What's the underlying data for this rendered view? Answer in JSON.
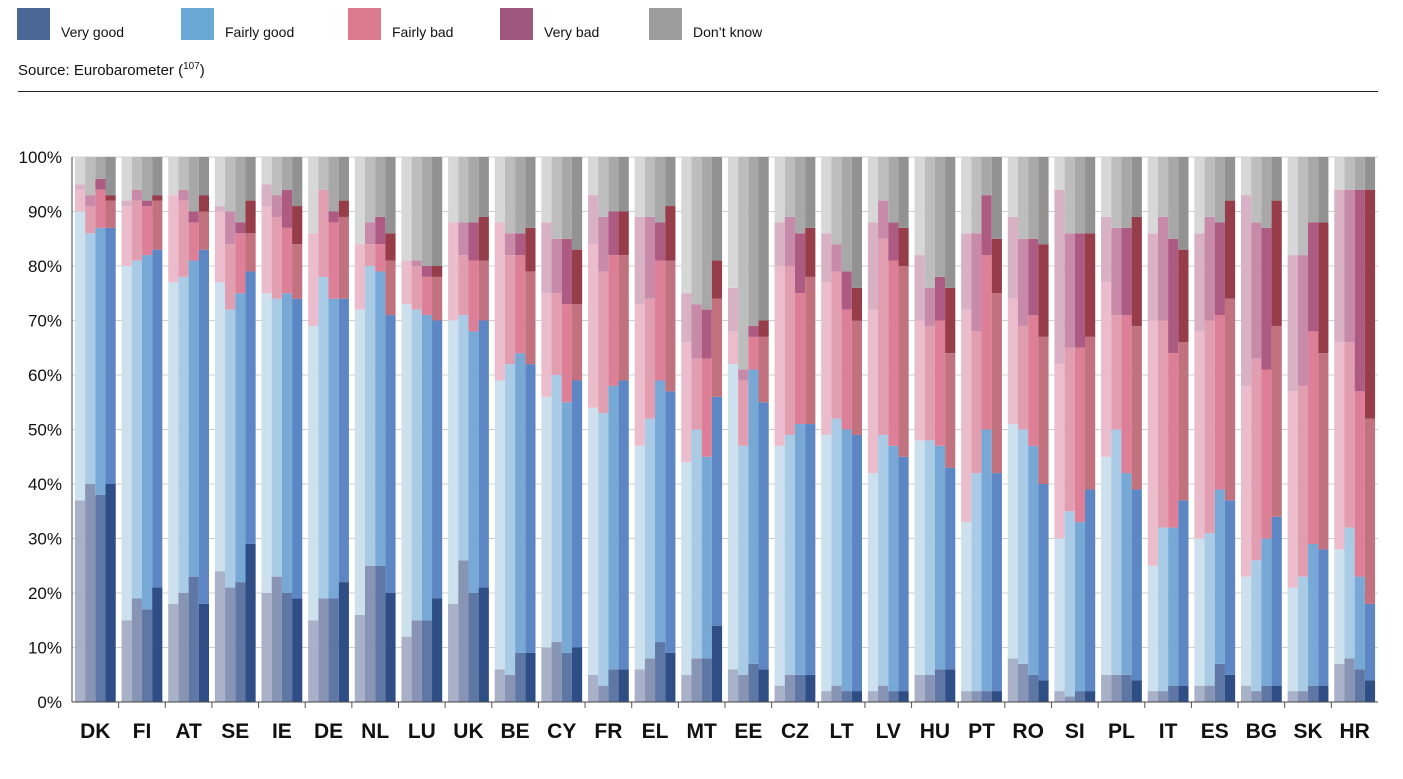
{
  "legend": {
    "items": [
      {
        "label": "Very good",
        "color": "#4a6796"
      },
      {
        "label": "Fairly good",
        "color": "#6aa8d6"
      },
      {
        "label": "Fairly bad",
        "color": "#dc7b90"
      },
      {
        "label": "Very bad",
        "color": "#a0577f"
      },
      {
        "label": "Don’t know",
        "color": "#9c9c9c"
      }
    ]
  },
  "source": {
    "text": "Source: Eurobarometer (",
    "ref": "107",
    "close": ")"
  },
  "chart_data": {
    "type": "bar",
    "stacked": true,
    "ylim": [
      0,
      100
    ],
    "yticks": [
      "0%",
      "10%",
      "20%",
      "30%",
      "40%",
      "50%",
      "60%",
      "70%",
      "80%",
      "90%",
      "100%"
    ],
    "grid": true,
    "categories": [
      "DK",
      "FI",
      "AT",
      "SE",
      "IE",
      "DE",
      "NL",
      "LU",
      "UK",
      "BE",
      "CY",
      "FR",
      "EL",
      "MT",
      "EE",
      "CZ",
      "LT",
      "LV",
      "HU",
      "PT",
      "RO",
      "SI",
      "PL",
      "IT",
      "ES",
      "BG",
      "SK",
      "HR"
    ],
    "stack_order": [
      "Very good",
      "Fairly good",
      "Fairly bad",
      "Very bad",
      "Don’t know"
    ],
    "countries": [
      {
        "name": "DK",
        "bars": [
          [
            37,
            53,
            4,
            1,
            5
          ],
          [
            40,
            46,
            5,
            2,
            7
          ],
          [
            38,
            49,
            7,
            2,
            4
          ],
          [
            40,
            47,
            5,
            1,
            7
          ]
        ]
      },
      {
        "name": "FI",
        "bars": [
          [
            15,
            65,
            11,
            1,
            8
          ],
          [
            19,
            62,
            11,
            2,
            6
          ],
          [
            17,
            65,
            9,
            1,
            8
          ],
          [
            21,
            62,
            9,
            1,
            7
          ]
        ]
      },
      {
        "name": "AT",
        "bars": [
          [
            18,
            59,
            16,
            0,
            7
          ],
          [
            20,
            58,
            14,
            2,
            6
          ],
          [
            23,
            58,
            7,
            2,
            10
          ],
          [
            18,
            65,
            7,
            3,
            7
          ]
        ]
      },
      {
        "name": "SE",
        "bars": [
          [
            24,
            53,
            13,
            1,
            9
          ],
          [
            21,
            51,
            12,
            6,
            10
          ],
          [
            22,
            53,
            11,
            2,
            12
          ],
          [
            29,
            50,
            7,
            6,
            8
          ]
        ]
      },
      {
        "name": "IE",
        "bars": [
          [
            20,
            55,
            16,
            4,
            5
          ],
          [
            23,
            51,
            15,
            4,
            7
          ],
          [
            20,
            55,
            12,
            7,
            6
          ],
          [
            19,
            55,
            10,
            7,
            9
          ]
        ]
      },
      {
        "name": "DE",
        "bars": [
          [
            15,
            54,
            17,
            0,
            14
          ],
          [
            19,
            59,
            16,
            0,
            6
          ],
          [
            19,
            55,
            14,
            2,
            10
          ],
          [
            22,
            52,
            15,
            3,
            8
          ]
        ]
      },
      {
        "name": "NL",
        "bars": [
          [
            16,
            56,
            12,
            0,
            16
          ],
          [
            25,
            55,
            4,
            4,
            12
          ],
          [
            25,
            54,
            5,
            5,
            11
          ],
          [
            20,
            51,
            10,
            5,
            14
          ]
        ]
      },
      {
        "name": "LU",
        "bars": [
          [
            12,
            61,
            8,
            0,
            19
          ],
          [
            15,
            57,
            8,
            1,
            19
          ],
          [
            15,
            56,
            7,
            2,
            20
          ],
          [
            19,
            51,
            8,
            2,
            20
          ]
        ]
      },
      {
        "name": "UK",
        "bars": [
          [
            18,
            52,
            18,
            0,
            12
          ],
          [
            26,
            45,
            11,
            6,
            12
          ],
          [
            20,
            48,
            13,
            7,
            12
          ],
          [
            21,
            49,
            11,
            8,
            11
          ]
        ]
      },
      {
        "name": "BE",
        "bars": [
          [
            6,
            53,
            29,
            0,
            12
          ],
          [
            5,
            57,
            20,
            4,
            14
          ],
          [
            9,
            55,
            18,
            4,
            14
          ],
          [
            9,
            53,
            17,
            8,
            13
          ]
        ]
      },
      {
        "name": "CY",
        "bars": [
          [
            10,
            46,
            19,
            13,
            12
          ],
          [
            11,
            49,
            15,
            10,
            15
          ],
          [
            9,
            46,
            18,
            12,
            15
          ],
          [
            10,
            49,
            14,
            10,
            17
          ]
        ]
      },
      {
        "name": "FR",
        "bars": [
          [
            5,
            49,
            30,
            9,
            7
          ],
          [
            3,
            50,
            26,
            10,
            11
          ],
          [
            6,
            52,
            24,
            8,
            10
          ],
          [
            6,
            53,
            23,
            8,
            10
          ]
        ]
      },
      {
        "name": "EL",
        "bars": [
          [
            6,
            41,
            26,
            16,
            11
          ],
          [
            8,
            44,
            22,
            15,
            11
          ],
          [
            11,
            48,
            22,
            7,
            12
          ],
          [
            9,
            48,
            24,
            10,
            9
          ]
        ]
      },
      {
        "name": "MT",
        "bars": [
          [
            5,
            39,
            22,
            9,
            25
          ],
          [
            8,
            42,
            13,
            10,
            27
          ],
          [
            8,
            37,
            18,
            9,
            28
          ],
          [
            14,
            42,
            18,
            7,
            19
          ]
        ]
      },
      {
        "name": "EE",
        "bars": [
          [
            6,
            56,
            6,
            8,
            24
          ],
          [
            5,
            42,
            12,
            2,
            39
          ],
          [
            7,
            54,
            6,
            2,
            31
          ],
          [
            6,
            49,
            12,
            3,
            30
          ]
        ]
      },
      {
        "name": "CZ",
        "bars": [
          [
            3,
            44,
            33,
            8,
            12
          ],
          [
            5,
            44,
            31,
            9,
            11
          ],
          [
            5,
            46,
            24,
            11,
            14
          ],
          [
            5,
            46,
            27,
            9,
            13
          ]
        ]
      },
      {
        "name": "LT",
        "bars": [
          [
            2,
            47,
            28,
            9,
            14
          ],
          [
            3,
            49,
            27,
            5,
            16
          ],
          [
            2,
            48,
            22,
            7,
            21
          ],
          [
            2,
            47,
            21,
            6,
            24
          ]
        ]
      },
      {
        "name": "LV",
        "bars": [
          [
            2,
            40,
            30,
            16,
            12
          ],
          [
            3,
            46,
            36,
            7,
            8
          ],
          [
            2,
            45,
            34,
            7,
            12
          ],
          [
            2,
            43,
            35,
            7,
            13
          ]
        ]
      },
      {
        "name": "HU",
        "bars": [
          [
            5,
            43,
            22,
            12,
            18
          ],
          [
            5,
            43,
            21,
            7,
            24
          ],
          [
            6,
            41,
            23,
            8,
            22
          ],
          [
            6,
            37,
            21,
            12,
            24
          ]
        ]
      },
      {
        "name": "PT",
        "bars": [
          [
            2,
            31,
            39,
            14,
            14
          ],
          [
            2,
            40,
            26,
            18,
            14
          ],
          [
            2,
            48,
            32,
            11,
            7
          ],
          [
            2,
            40,
            33,
            10,
            15
          ]
        ]
      },
      {
        "name": "RO",
        "bars": [
          [
            8,
            43,
            23,
            15,
            11
          ],
          [
            7,
            43,
            19,
            16,
            15
          ],
          [
            5,
            42,
            24,
            14,
            15
          ],
          [
            4,
            36,
            27,
            17,
            16
          ]
        ]
      },
      {
        "name": "SI",
        "bars": [
          [
            2,
            28,
            32,
            32,
            6
          ],
          [
            1,
            34,
            30,
            21,
            14
          ],
          [
            2,
            31,
            32,
            21,
            14
          ],
          [
            2,
            37,
            28,
            19,
            14
          ]
        ]
      },
      {
        "name": "PL",
        "bars": [
          [
            5,
            40,
            32,
            12,
            11
          ],
          [
            5,
            45,
            21,
            16,
            13
          ],
          [
            5,
            37,
            29,
            16,
            13
          ],
          [
            4,
            35,
            30,
            20,
            11
          ]
        ]
      },
      {
        "name": "IT",
        "bars": [
          [
            2,
            23,
            45,
            16,
            14
          ],
          [
            2,
            30,
            38,
            19,
            11
          ],
          [
            3,
            29,
            32,
            21,
            15
          ],
          [
            3,
            34,
            29,
            17,
            17
          ]
        ]
      },
      {
        "name": "ES",
        "bars": [
          [
            3,
            27,
            38,
            18,
            14
          ],
          [
            3,
            28,
            39,
            19,
            11
          ],
          [
            7,
            32,
            32,
            17,
            12
          ],
          [
            5,
            32,
            37,
            18,
            8
          ]
        ]
      },
      {
        "name": "BG",
        "bars": [
          [
            3,
            20,
            35,
            35,
            7
          ],
          [
            2,
            24,
            37,
            25,
            12
          ],
          [
            3,
            27,
            31,
            26,
            13
          ],
          [
            3,
            31,
            35,
            23,
            8
          ]
        ]
      },
      {
        "name": "SK",
        "bars": [
          [
            2,
            19,
            36,
            25,
            18
          ],
          [
            2,
            21,
            35,
            24,
            18
          ],
          [
            3,
            26,
            39,
            20,
            12
          ],
          [
            3,
            25,
            36,
            24,
            12
          ]
        ]
      },
      {
        "name": "HR",
        "bars": [
          [
            7,
            21,
            38,
            28,
            6
          ],
          [
            8,
            24,
            34,
            28,
            6
          ],
          [
            6,
            17,
            34,
            37,
            6
          ],
          [
            4,
            14,
            34,
            42,
            6
          ]
        ]
      }
    ]
  }
}
